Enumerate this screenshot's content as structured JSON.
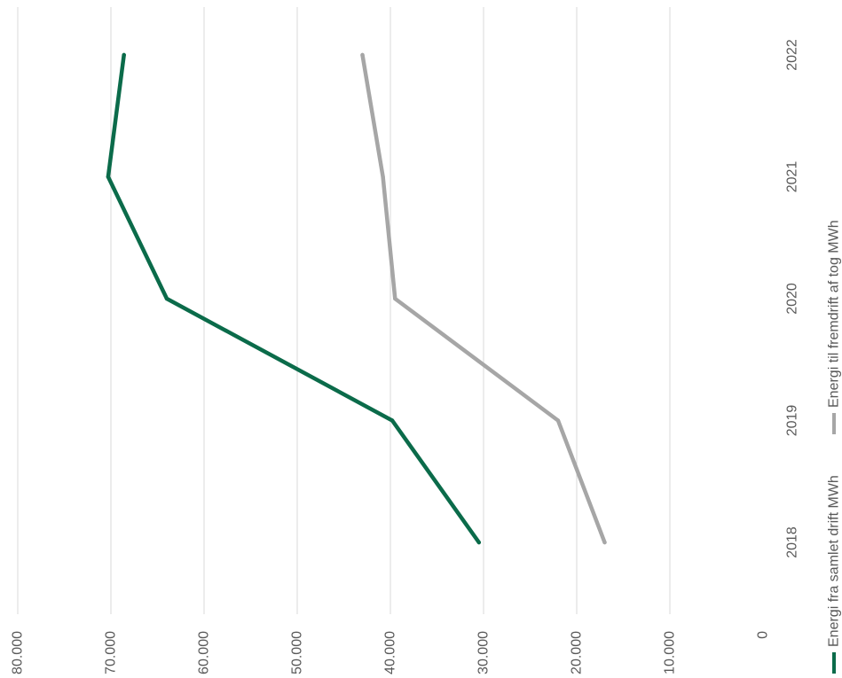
{
  "chart_data": {
    "type": "line",
    "orientation": "rotated-90-clockwise",
    "categories": [
      "2018",
      "2019",
      "2020",
      "2021",
      "2022"
    ],
    "y_ticks": [
      "0",
      "10.000",
      "20.000",
      "30.000",
      "40.000",
      "50.000",
      "60.000",
      "70.000",
      "80.000"
    ],
    "ylim": [
      0,
      80000
    ],
    "grid": true,
    "legend_position": "bottom",
    "series": [
      {
        "name": "Energi fra samlet drift MWh",
        "color": "#0b6b4a",
        "values": [
          30500,
          39800,
          64000,
          70300,
          68600
        ]
      },
      {
        "name": "Energi til fremdrift af tog MWh",
        "color": "#a6a6a6",
        "values": [
          17000,
          22000,
          39500,
          40800,
          43000
        ]
      }
    ]
  }
}
